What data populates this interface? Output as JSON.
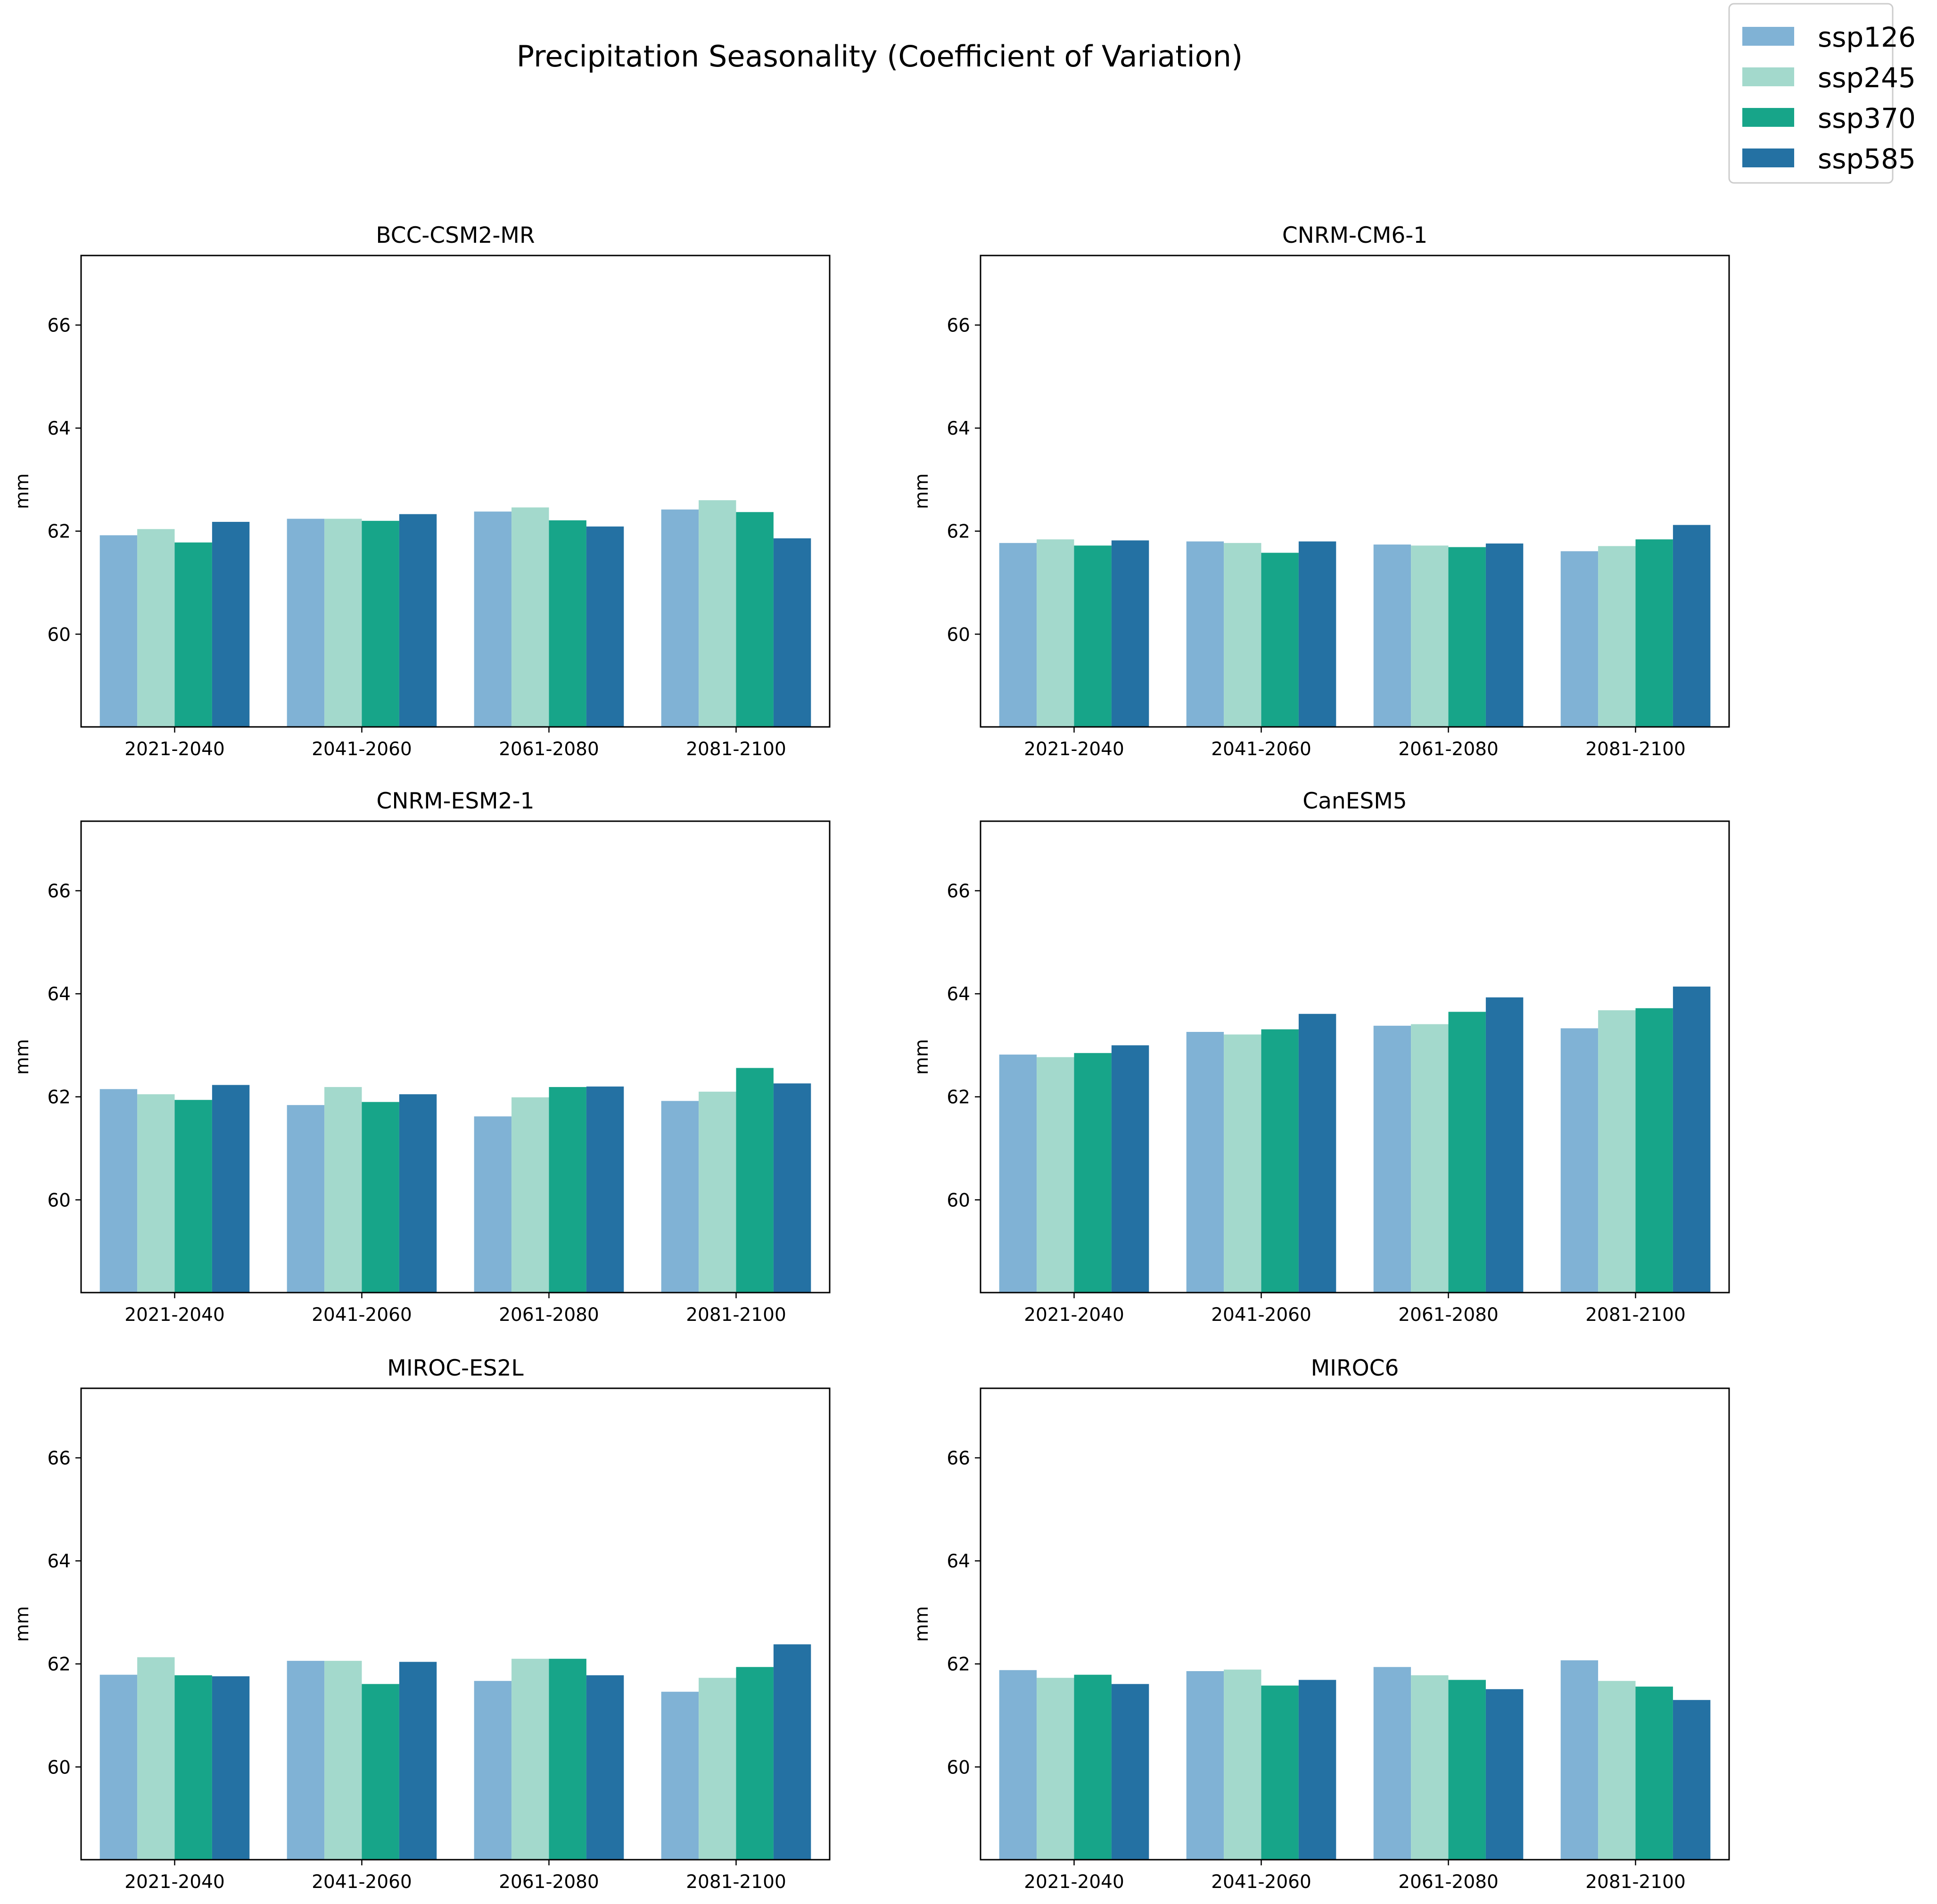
{
  "figure": {
    "title": "Precipitation Seasonality (Coefficient of Variation)"
  },
  "legend": {
    "placement": "top-right",
    "entries": [
      {
        "name": "ssp126",
        "color": "#80b2d5"
      },
      {
        "name": "ssp245",
        "color": "#a3d9cc"
      },
      {
        "name": "ssp370",
        "color": "#17a589"
      },
      {
        "name": "ssp585",
        "color": "#2471a3"
      }
    ]
  },
  "chart_data": [
    {
      "type": "bar",
      "title": "BCC-CSM2-MR",
      "xlabel": "",
      "ylabel": "mm",
      "ylim": [
        58.2,
        67.35
      ],
      "yticks": [
        60,
        62,
        64,
        66
      ],
      "categories": [
        "2021-2040",
        "2041-2060",
        "2061-2080",
        "2081-2100"
      ],
      "series": [
        {
          "name": "ssp126",
          "values": [
            61.92,
            62.24,
            62.38,
            62.42
          ]
        },
        {
          "name": "ssp245",
          "values": [
            62.04,
            62.24,
            62.46,
            62.6
          ]
        },
        {
          "name": "ssp370",
          "values": [
            61.78,
            62.2,
            62.21,
            62.37
          ]
        },
        {
          "name": "ssp585",
          "values": [
            62.18,
            62.33,
            62.09,
            61.86
          ]
        }
      ]
    },
    {
      "type": "bar",
      "title": "CNRM-CM6-1",
      "xlabel": "",
      "ylabel": "mm",
      "ylim": [
        58.2,
        67.35
      ],
      "yticks": [
        60,
        62,
        64,
        66
      ],
      "categories": [
        "2021-2040",
        "2041-2060",
        "2061-2080",
        "2081-2100"
      ],
      "series": [
        {
          "name": "ssp126",
          "values": [
            61.77,
            61.8,
            61.74,
            61.61
          ]
        },
        {
          "name": "ssp245",
          "values": [
            61.84,
            61.77,
            61.72,
            61.71
          ]
        },
        {
          "name": "ssp370",
          "values": [
            61.72,
            61.58,
            61.69,
            61.84
          ]
        },
        {
          "name": "ssp585",
          "values": [
            61.82,
            61.8,
            61.76,
            62.12
          ]
        }
      ]
    },
    {
      "type": "bar",
      "title": "CNRM-ESM2-1",
      "xlabel": "",
      "ylabel": "mm",
      "ylim": [
        58.2,
        67.35
      ],
      "yticks": [
        60,
        62,
        64,
        66
      ],
      "categories": [
        "2021-2040",
        "2041-2060",
        "2061-2080",
        "2081-2100"
      ],
      "series": [
        {
          "name": "ssp126",
          "values": [
            62.15,
            61.84,
            61.62,
            61.92
          ]
        },
        {
          "name": "ssp245",
          "values": [
            62.05,
            62.19,
            61.99,
            62.1
          ]
        },
        {
          "name": "ssp370",
          "values": [
            61.94,
            61.9,
            62.19,
            62.56
          ]
        },
        {
          "name": "ssp585",
          "values": [
            62.23,
            62.05,
            62.2,
            62.26
          ]
        }
      ]
    },
    {
      "type": "bar",
      "title": "CanESM5",
      "xlabel": "",
      "ylabel": "mm",
      "ylim": [
        58.2,
        67.35
      ],
      "yticks": [
        60,
        62,
        64,
        66
      ],
      "categories": [
        "2021-2040",
        "2041-2060",
        "2061-2080",
        "2081-2100"
      ],
      "series": [
        {
          "name": "ssp126",
          "values": [
            62.82,
            63.26,
            63.38,
            63.33
          ]
        },
        {
          "name": "ssp245",
          "values": [
            62.77,
            63.21,
            63.41,
            63.68
          ]
        },
        {
          "name": "ssp370",
          "values": [
            62.85,
            63.31,
            63.65,
            63.72
          ]
        },
        {
          "name": "ssp585",
          "values": [
            63.0,
            63.61,
            63.93,
            64.14
          ]
        }
      ]
    },
    {
      "type": "bar",
      "title": "MIROC-ES2L",
      "xlabel": "",
      "ylabel": "mm",
      "ylim": [
        58.2,
        67.35
      ],
      "yticks": [
        60,
        62,
        64,
        66
      ],
      "categories": [
        "2021-2040",
        "2041-2060",
        "2061-2080",
        "2081-2100"
      ],
      "series": [
        {
          "name": "ssp126",
          "values": [
            61.79,
            62.06,
            61.67,
            61.46
          ]
        },
        {
          "name": "ssp245",
          "values": [
            62.13,
            62.06,
            62.1,
            61.73
          ]
        },
        {
          "name": "ssp370",
          "values": [
            61.78,
            61.61,
            62.1,
            61.94
          ]
        },
        {
          "name": "ssp585",
          "values": [
            61.76,
            62.04,
            61.78,
            62.38
          ]
        }
      ]
    },
    {
      "type": "bar",
      "title": "MIROC6",
      "xlabel": "",
      "ylabel": "mm",
      "ylim": [
        58.2,
        67.35
      ],
      "yticks": [
        60,
        62,
        64,
        66
      ],
      "categories": [
        "2021-2040",
        "2041-2060",
        "2061-2080",
        "2081-2100"
      ],
      "series": [
        {
          "name": "ssp126",
          "values": [
            61.88,
            61.86,
            61.94,
            62.07
          ]
        },
        {
          "name": "ssp245",
          "values": [
            61.73,
            61.89,
            61.78,
            61.67
          ]
        },
        {
          "name": "ssp370",
          "values": [
            61.79,
            61.58,
            61.69,
            61.56
          ]
        },
        {
          "name": "ssp585",
          "values": [
            61.61,
            61.69,
            61.51,
            61.3
          ]
        }
      ]
    }
  ]
}
